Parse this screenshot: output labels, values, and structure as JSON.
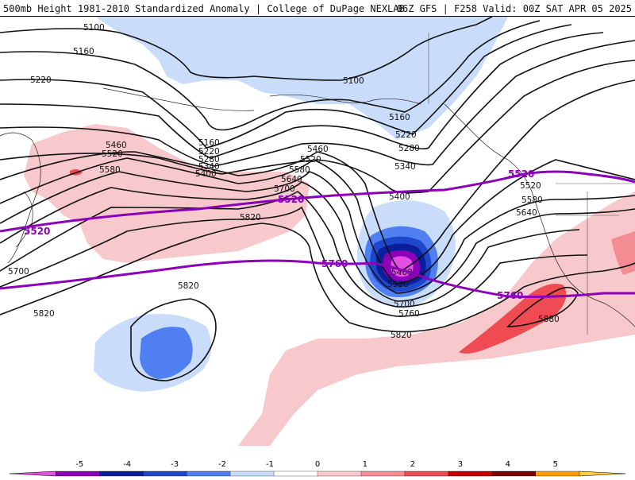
{
  "header": {
    "title_left": "500mb Height 1981-2010 Standardized Anomaly | College of DuPage NEXLAB",
    "title_right": "06Z GFS | F258 Valid: 00Z SAT APR 05 2025"
  },
  "contour_labels": {
    "h5100": "5100",
    "h5160": "5160",
    "h5220": "5220",
    "h5280": "5280",
    "h5340": "5340",
    "h5400": "5400",
    "h5460": "5460",
    "h5520": "5520",
    "h5580": "5580",
    "h5640": "5640",
    "h5700": "5700",
    "h5760": "5760",
    "h5820": "5820",
    "h5880": "5880"
  },
  "iso_labels": {
    "h5520": "5520",
    "h5760": "5760"
  },
  "colorbar": {
    "ticks": [
      "-5",
      "-4",
      "-3",
      "-2",
      "-1",
      "0",
      "1",
      "2",
      "3",
      "4",
      "5"
    ],
    "colors": [
      "#e64fe6",
      "#8b00b8",
      "#0b1f9c",
      "#1f47cc",
      "#4f7ff0",
      "#c9ddfb",
      "#ffffff",
      "#f8c9cc",
      "#f48c93",
      "#ee4b52",
      "#c80000",
      "#7a0000",
      "#ff9900",
      "#ffcc44"
    ]
  }
}
